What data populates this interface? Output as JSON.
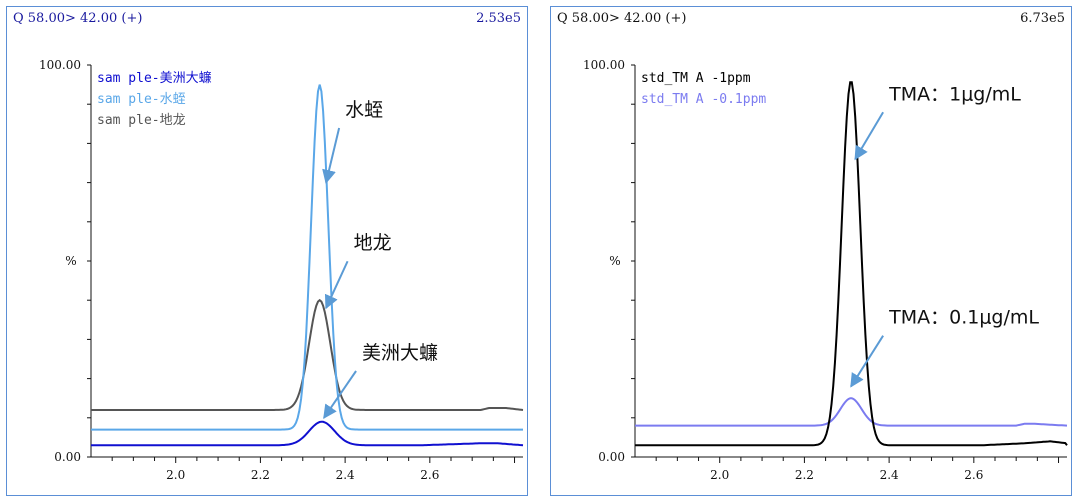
{
  "chart_data": [
    {
      "type": "line",
      "header_left": "Q 58.00> 42.00 (+)",
      "header_right": "2.53e5",
      "ylabel": "%",
      "yticks": [
        "100.00",
        "0.00"
      ],
      "xticks": [
        "2.0",
        "2.2",
        "2.4",
        "2.6"
      ],
      "xlim": [
        1.8,
        2.82
      ],
      "ylim": [
        0,
        100
      ],
      "series": [
        {
          "name": "sam ple-美洲大蠊",
          "color": "#1010d0",
          "baseline": 3,
          "peak_x": 2.345,
          "peak_y": 9,
          "width": 0.03,
          "tail": [
            [
              2.58,
              3
            ],
            [
              2.72,
              3.5
            ],
            [
              2.76,
              3.5
            ],
            [
              2.82,
              3
            ]
          ]
        },
        {
          "name": "sam ple-水蛭",
          "color": "#5aa7e8",
          "baseline": 7,
          "peak_x": 2.34,
          "peak_y": 95,
          "width": 0.02,
          "tail": [
            [
              2.58,
              7
            ],
            [
              2.82,
              7
            ]
          ]
        },
        {
          "name": "sam ple-地龙",
          "color": "#555555",
          "baseline": 12,
          "peak_x": 2.34,
          "peak_y": 40,
          "width": 0.025,
          "tail": [
            [
              2.72,
              12
            ],
            [
              2.74,
              12.5
            ],
            [
              2.78,
              12.5
            ],
            [
              2.82,
              12
            ]
          ]
        }
      ],
      "annotations": [
        {
          "text": "水蛭",
          "x": 2.4,
          "y": 87,
          "arrow_to": [
            2.355,
            70
          ]
        },
        {
          "text": "地龙",
          "x": 2.42,
          "y": 53,
          "arrow_to": [
            2.355,
            38
          ]
        },
        {
          "text": "美洲大蠊",
          "x": 2.44,
          "y": 25,
          "arrow_to": [
            2.35,
            10
          ]
        }
      ]
    },
    {
      "type": "line",
      "header_left": "Q 58.00> 42.00 (+)",
      "header_right": "6.73e5",
      "ylabel": "%",
      "yticks": [
        "100.00",
        "0.00"
      ],
      "xticks": [
        "2.0",
        "2.2",
        "2.4",
        "2.6"
      ],
      "xlim": [
        1.8,
        2.82
      ],
      "ylim": [
        0,
        100
      ],
      "series": [
        {
          "name": "std_TM A -1ppm",
          "color": "#000000",
          "baseline": 3,
          "peak_x": 2.31,
          "peak_y": 96,
          "width": 0.022,
          "tail": [
            [
              2.62,
              3
            ],
            [
              2.72,
              3.5
            ],
            [
              2.78,
              4
            ],
            [
              2.82,
              3.5
            ]
          ]
        },
        {
          "name": "std_TM A -0.1ppm",
          "color": "#7b7bf0",
          "baseline": 8,
          "peak_x": 2.31,
          "peak_y": 15,
          "width": 0.025,
          "tail": [
            [
              2.7,
              8
            ],
            [
              2.72,
              8.5
            ],
            [
              2.74,
              8.5
            ],
            [
              2.82,
              8
            ]
          ]
        }
      ],
      "annotations": [
        {
          "text": "TMA：1μg/mL",
          "x": 2.4,
          "y": 91,
          "arrow_to": [
            2.32,
            76
          ]
        },
        {
          "text": "TMA：0.1μg/mL",
          "x": 2.4,
          "y": 34,
          "arrow_to": [
            2.31,
            18
          ]
        }
      ]
    }
  ]
}
